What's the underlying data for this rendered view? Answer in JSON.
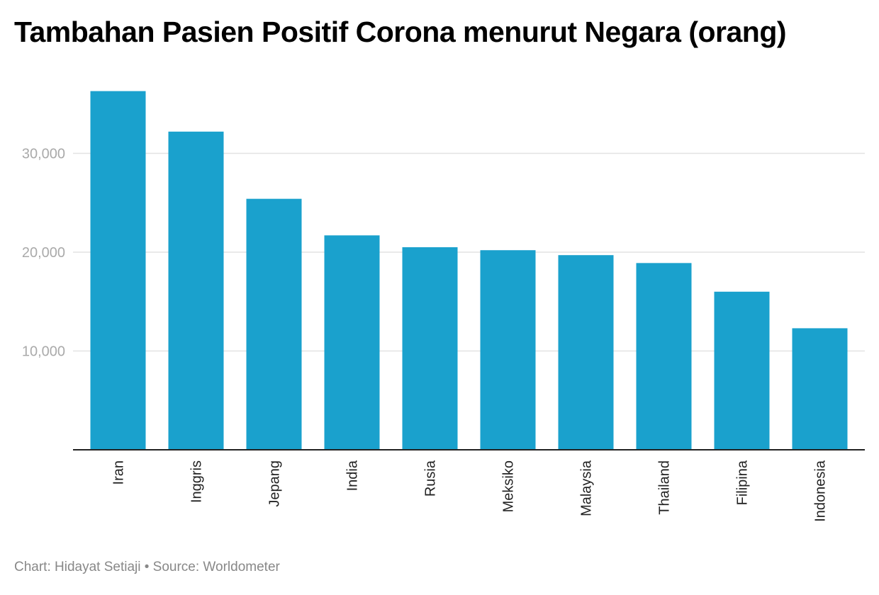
{
  "chart_data": {
    "type": "bar",
    "title": "Tambahan Pasien Positif Corona menurut Negara (orang)",
    "categories": [
      "Iran",
      "Inggris",
      "Jepang",
      "India",
      "Rusia",
      "Meksiko",
      "Malaysia",
      "Thailand",
      "Filipina",
      "Indonesia"
    ],
    "values": [
      36300,
      32200,
      25400,
      21700,
      20500,
      20200,
      19700,
      18900,
      16000,
      12300
    ],
    "xlabel": "",
    "ylabel": "",
    "ylim": [
      0,
      36500
    ],
    "yticks": [
      10000,
      20000,
      30000
    ],
    "ytick_labels": [
      "10,000",
      "20,000",
      "30,000"
    ],
    "grid": true,
    "bar_color": "#1aa1cd"
  },
  "footer": "Chart: Hidayat Setiaji • Source: Worldometer"
}
